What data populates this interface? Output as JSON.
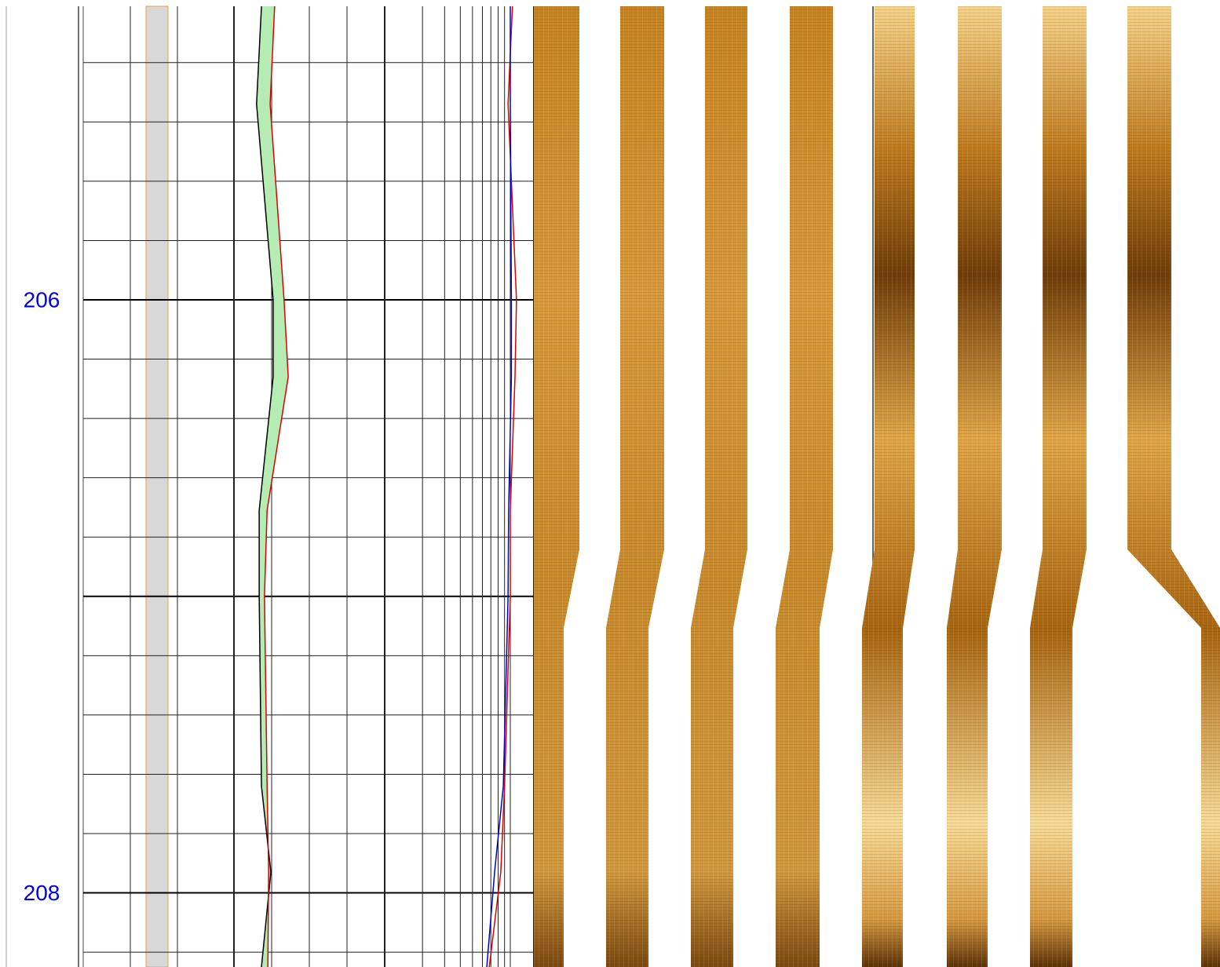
{
  "chart_data": {
    "type": "well-log",
    "ylim": [
      205.01,
      208.25
    ],
    "yticks": [
      206,
      208
    ],
    "ygrid_major": [
      206,
      207,
      208
    ],
    "ygrid_minor": [
      205.2,
      205.4,
      205.6,
      205.8,
      206.2,
      206.4,
      206.6,
      206.8,
      207.2,
      207.4,
      207.6,
      207.8,
      208.2
    ],
    "tick_color": "#0000ee",
    "depth": [
      205.01,
      205.34,
      206.0,
      206.26,
      206.71,
      207.0,
      207.64,
      207.93,
      208.25
    ],
    "caliper_track": {
      "xlim": [
        0,
        4
      ],
      "xgrid": [
        0,
        1,
        2,
        3,
        4
      ],
      "fill": "#b4ecb4",
      "series": [
        {
          "color": "#000000",
          "values": [
            0.73,
            0.6,
            1.04,
            1.04,
            0.67,
            0.67,
            0.73,
            0.98,
            0.73
          ]
        },
        {
          "color": "#dd0000",
          "values": [
            1.08,
            0.96,
            1.33,
            1.44,
            0.88,
            0.81,
            0.88,
            0.92,
            0.9
          ]
        }
      ]
    },
    "resistivity_track": {
      "xlim": [
        1,
        10
      ],
      "log": true,
      "xgrid": [
        1,
        2,
        3,
        4,
        5,
        6,
        7,
        8,
        9,
        10
      ],
      "series": [
        {
          "color": "#dd0000",
          "values": [
            10.4,
            9.6,
            11.2,
            10.9,
            10,
            10,
            9.0,
            8.4,
            6.8
          ]
        },
        {
          "color": "#0000cc",
          "values": [
            10,
            10,
            10.2,
            10.2,
            9.7,
            9.6,
            8.8,
            7.5,
            6.5
          ]
        }
      ]
    }
  }
}
